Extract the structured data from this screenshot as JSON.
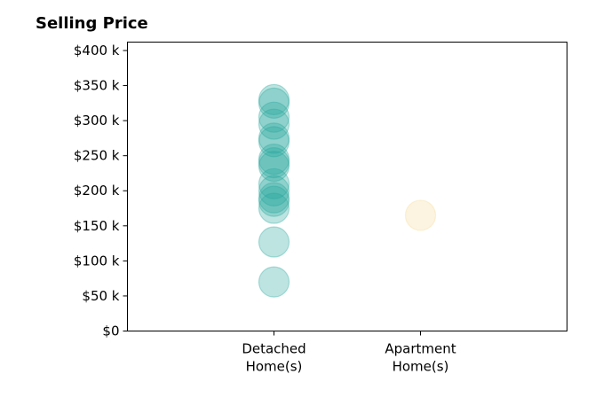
{
  "chart_data": {
    "type": "scatter",
    "title": "Selling Price",
    "xlabel": "",
    "ylabel": "",
    "categories": [
      "Detached\nHome(s)",
      "Apartment\nHome(s)"
    ],
    "xlim": [
      -1,
      2
    ],
    "ylim": [
      0,
      412000
    ],
    "yticks": [
      0,
      50000,
      100000,
      150000,
      200000,
      250000,
      300000,
      350000,
      400000
    ],
    "ytick_labels": [
      "$0",
      "$50 k",
      "$100 k",
      "$150 k",
      "$200 k",
      "$250 k",
      "$300 k",
      "$350 k",
      "$400 k"
    ],
    "grid": false,
    "series": [
      {
        "category_index": 0,
        "color": "#26a69a",
        "values": [
          70000,
          127000,
          175000,
          185000,
          190000,
          200000,
          210000,
          235000,
          240000,
          245000,
          270000,
          275000,
          295000,
          305000,
          325000,
          330000
        ]
      },
      {
        "category_index": 1,
        "color": "#f5d998",
        "values": [
          165000
        ]
      }
    ]
  }
}
